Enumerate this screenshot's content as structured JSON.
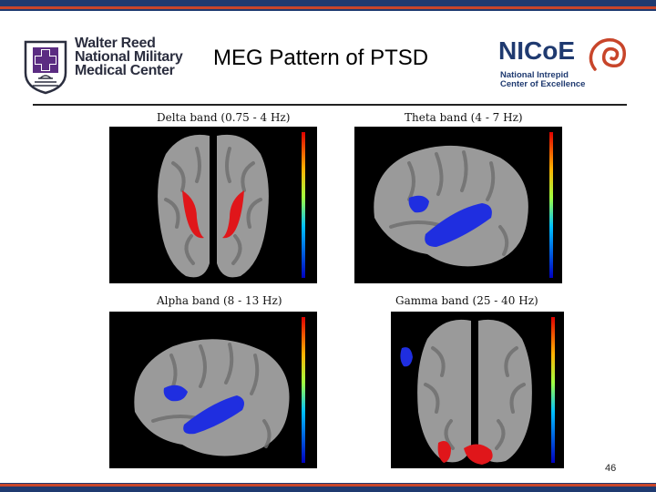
{
  "slide": {
    "title": "MEG Pattern of PTSD",
    "page_number": "46"
  },
  "logos": {
    "walter_reed": {
      "line1": "Walter Reed",
      "line2": "National Military",
      "line3": "Medical Center"
    },
    "nicoe": {
      "wordmark": "NICoE",
      "line1": "National Intrepid",
      "line2": "Center of Excellence"
    }
  },
  "panels": [
    {
      "label": "Delta band (0.75 - 4 Hz)"
    },
    {
      "label": "Theta band (4 - 7 Hz)"
    },
    {
      "label": "Alpha band (8 - 13 Hz)"
    },
    {
      "label": "Gamma band (25 - 40 Hz)"
    }
  ],
  "colors": {
    "stripe_navy": "#1f3a70",
    "stripe_red": "#c8452a",
    "cortex": "#9a9a9a",
    "activation_red": "#e0161a",
    "activation_blue": "#1f2ee0"
  }
}
